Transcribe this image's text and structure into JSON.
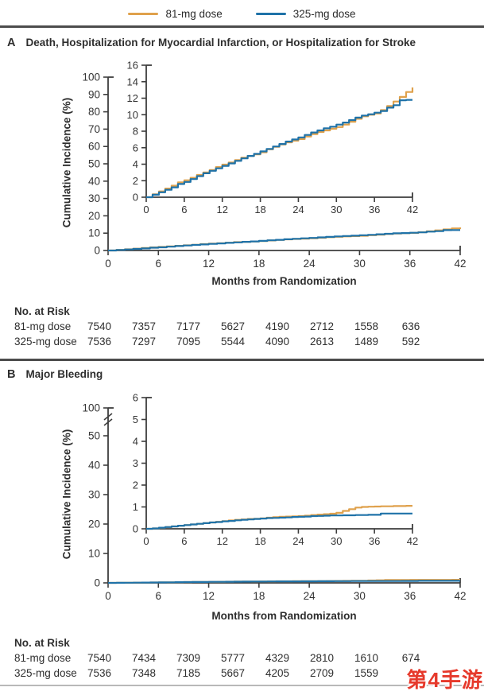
{
  "legend": {
    "items": [
      {
        "label": "81-mg dose",
        "color": "#DFA14C"
      },
      {
        "label": "325-mg dose",
        "color": "#1F72A8"
      }
    ]
  },
  "watermark": {
    "text": "第4手游",
    "color": "#E6392B"
  },
  "chart_data": [
    {
      "type": "line",
      "panel_letter": "A",
      "title": "Death, Hospitalization for Myocardial Infarction, or Hospitalization for Stroke",
      "ylabel": "Cumulative Incidence (%)",
      "xlabel": "Months from Randomization",
      "main_axis": {
        "yticks": [
          0,
          10,
          20,
          30,
          40,
          50,
          60,
          70,
          80,
          90,
          100
        ],
        "xticks": [
          0,
          6,
          12,
          18,
          24,
          30,
          36,
          42
        ],
        "ylim": [
          0,
          100
        ],
        "xlim": [
          0,
          42
        ],
        "broken": false
      },
      "inset_axis": {
        "yticks": [
          0,
          2,
          4,
          6,
          8,
          10,
          12,
          14,
          16
        ],
        "xticks": [
          0,
          6,
          12,
          18,
          24,
          30,
          36,
          42
        ],
        "ylim": [
          0,
          16
        ],
        "xlim": [
          0,
          42
        ]
      },
      "series": [
        {
          "name": "81-mg dose",
          "color": "#DFA14C",
          "points": [
            [
              0,
              0
            ],
            [
              1,
              0.35
            ],
            [
              2,
              0.7
            ],
            [
              3,
              1.05
            ],
            [
              4,
              1.4
            ],
            [
              5,
              1.8
            ],
            [
              6,
              2.05
            ],
            [
              7,
              2.35
            ],
            [
              8,
              2.7
            ],
            [
              9,
              3.0
            ],
            [
              10,
              3.3
            ],
            [
              11,
              3.65
            ],
            [
              12,
              3.95
            ],
            [
              13,
              4.2
            ],
            [
              14,
              4.5
            ],
            [
              15,
              4.8
            ],
            [
              16,
              5.0
            ],
            [
              17,
              5.2
            ],
            [
              18,
              5.45
            ],
            [
              19,
              5.8
            ],
            [
              20,
              6.1
            ],
            [
              21,
              6.4
            ],
            [
              22,
              6.65
            ],
            [
              23,
              6.85
            ],
            [
              24,
              7.05
            ],
            [
              25,
              7.35
            ],
            [
              26,
              7.65
            ],
            [
              27,
              7.9
            ],
            [
              28,
              8.1
            ],
            [
              29,
              8.3
            ],
            [
              30,
              8.5
            ],
            [
              31,
              8.8
            ],
            [
              32,
              9.15
            ],
            [
              33,
              9.5
            ],
            [
              34,
              9.8
            ],
            [
              35,
              10.0
            ],
            [
              36,
              10.15
            ],
            [
              37,
              10.55
            ],
            [
              38,
              11.05
            ],
            [
              39,
              11.6
            ],
            [
              40,
              12.15
            ],
            [
              41,
              12.75
            ],
            [
              42,
              13.3
            ]
          ]
        },
        {
          "name": "325-mg dose",
          "color": "#1F72A8",
          "points": [
            [
              0,
              0
            ],
            [
              1,
              0.3
            ],
            [
              2,
              0.6
            ],
            [
              3,
              0.9
            ],
            [
              4,
              1.2
            ],
            [
              5,
              1.6
            ],
            [
              6,
              1.85
            ],
            [
              7,
              2.2
            ],
            [
              8,
              2.55
            ],
            [
              9,
              2.9
            ],
            [
              10,
              3.2
            ],
            [
              11,
              3.5
            ],
            [
              12,
              3.8
            ],
            [
              13,
              4.1
            ],
            [
              14,
              4.4
            ],
            [
              15,
              4.7
            ],
            [
              16,
              5.0
            ],
            [
              17,
              5.25
            ],
            [
              18,
              5.55
            ],
            [
              19,
              5.85
            ],
            [
              20,
              6.15
            ],
            [
              21,
              6.45
            ],
            [
              22,
              6.75
            ],
            [
              23,
              7.0
            ],
            [
              24,
              7.25
            ],
            [
              25,
              7.55
            ],
            [
              26,
              7.85
            ],
            [
              27,
              8.1
            ],
            [
              28,
              8.35
            ],
            [
              29,
              8.55
            ],
            [
              30,
              8.8
            ],
            [
              31,
              9.05
            ],
            [
              32,
              9.35
            ],
            [
              33,
              9.65
            ],
            [
              34,
              9.9
            ],
            [
              35,
              10.05
            ],
            [
              36,
              10.25
            ],
            [
              37,
              10.45
            ],
            [
              38,
              10.85
            ],
            [
              39,
              11.15
            ],
            [
              40,
              11.75
            ],
            [
              41,
              11.8
            ],
            [
              42,
              11.8
            ]
          ]
        }
      ],
      "risk_table": {
        "title": "No. at Risk",
        "rows": [
          {
            "label": "81-mg dose",
            "values": [
              "7540",
              "7357",
              "7177",
              "5627",
              "4190",
              "2712",
              "1558",
              "636"
            ]
          },
          {
            "label": "325-mg dose",
            "values": [
              "7536",
              "7297",
              "7095",
              "5544",
              "4090",
              "2613",
              "1489",
              "592"
            ]
          }
        ]
      }
    },
    {
      "type": "line",
      "panel_letter": "B",
      "title": "Major Bleeding",
      "ylabel": "Cumulative Incidence (%)",
      "xlabel": "Months from Randomization",
      "main_axis": {
        "yticks": [
          0,
          10,
          20,
          30,
          40,
          50
        ],
        "ytick_top": 100,
        "xticks": [
          0,
          6,
          12,
          18,
          24,
          30,
          36,
          42
        ],
        "ylim": [
          0,
          100
        ],
        "xlim": [
          0,
          42
        ],
        "broken": true
      },
      "inset_axis": {
        "yticks": [
          0,
          1,
          2,
          3,
          4,
          5,
          6
        ],
        "xticks": [
          0,
          6,
          12,
          18,
          24,
          30,
          36,
          42
        ],
        "ylim": [
          0,
          6
        ],
        "xlim": [
          0,
          42
        ]
      },
      "series": [
        {
          "name": "81-mg dose",
          "color": "#DFA14C",
          "points": [
            [
              0,
              0
            ],
            [
              1,
              0.02
            ],
            [
              2,
              0.05
            ],
            [
              3,
              0.08
            ],
            [
              4,
              0.11
            ],
            [
              5,
              0.14
            ],
            [
              6,
              0.17
            ],
            [
              7,
              0.2
            ],
            [
              8,
              0.23
            ],
            [
              9,
              0.26
            ],
            [
              10,
              0.29
            ],
            [
              11,
              0.32
            ],
            [
              12,
              0.35
            ],
            [
              13,
              0.38
            ],
            [
              14,
              0.41
            ],
            [
              15,
              0.43
            ],
            [
              16,
              0.45
            ],
            [
              17,
              0.46
            ],
            [
              18,
              0.48
            ],
            [
              19,
              0.51
            ],
            [
              20,
              0.53
            ],
            [
              21,
              0.55
            ],
            [
              22,
              0.56
            ],
            [
              23,
              0.57
            ],
            [
              24,
              0.58
            ],
            [
              25,
              0.6
            ],
            [
              26,
              0.63
            ],
            [
              27,
              0.65
            ],
            [
              28,
              0.67
            ],
            [
              29,
              0.69
            ],
            [
              30,
              0.73
            ],
            [
              31,
              0.82
            ],
            [
              32,
              0.9
            ],
            [
              33,
              0.97
            ],
            [
              34,
              1.0
            ],
            [
              35,
              1.01
            ],
            [
              36,
              1.02
            ],
            [
              37,
              1.03
            ],
            [
              38,
              1.03
            ],
            [
              39,
              1.04
            ],
            [
              40,
              1.04
            ],
            [
              41,
              1.05
            ],
            [
              42,
              1.05
            ]
          ]
        },
        {
          "name": "325-mg dose",
          "color": "#1F72A8",
          "points": [
            [
              0,
              0
            ],
            [
              1,
              0.02
            ],
            [
              2,
              0.05
            ],
            [
              3,
              0.08
            ],
            [
              4,
              0.11
            ],
            [
              5,
              0.14
            ],
            [
              6,
              0.17
            ],
            [
              7,
              0.2
            ],
            [
              8,
              0.23
            ],
            [
              9,
              0.26
            ],
            [
              10,
              0.29
            ],
            [
              11,
              0.31
            ],
            [
              12,
              0.34
            ],
            [
              13,
              0.36
            ],
            [
              14,
              0.39
            ],
            [
              15,
              0.41
            ],
            [
              16,
              0.43
            ],
            [
              17,
              0.45
            ],
            [
              18,
              0.47
            ],
            [
              19,
              0.49
            ],
            [
              20,
              0.5
            ],
            [
              21,
              0.51
            ],
            [
              22,
              0.52
            ],
            [
              23,
              0.54
            ],
            [
              24,
              0.55
            ],
            [
              25,
              0.56
            ],
            [
              26,
              0.58
            ],
            [
              27,
              0.59
            ],
            [
              28,
              0.6
            ],
            [
              29,
              0.61
            ],
            [
              30,
              0.61
            ],
            [
              31,
              0.62
            ],
            [
              32,
              0.62
            ],
            [
              33,
              0.63
            ],
            [
              34,
              0.63
            ],
            [
              35,
              0.64
            ],
            [
              36,
              0.64
            ],
            [
              37,
              0.7
            ],
            [
              38,
              0.7
            ],
            [
              39,
              0.7
            ],
            [
              40,
              0.7
            ],
            [
              41,
              0.7
            ],
            [
              42,
              0.7
            ]
          ]
        }
      ],
      "risk_table": {
        "title": "No. at Risk",
        "rows": [
          {
            "label": "81-mg dose",
            "values": [
              "7540",
              "7434",
              "7309",
              "5777",
              "4329",
              "2810",
              "1610",
              "674"
            ]
          },
          {
            "label": "325-mg dose",
            "values": [
              "7536",
              "7348",
              "7185",
              "5667",
              "4205",
              "2709",
              "1559",
              ""
            ]
          }
        ]
      }
    }
  ]
}
